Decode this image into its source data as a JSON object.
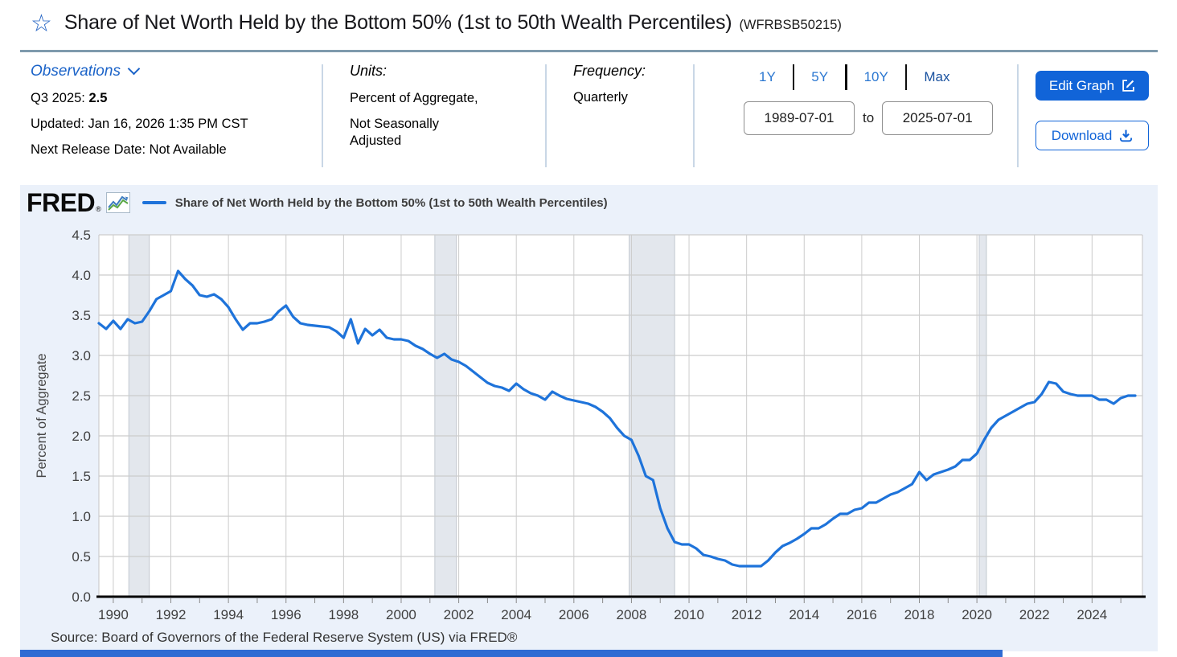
{
  "header": {
    "title": "Share of Net Worth Held by the Bottom 50% (1st to 50th Wealth Percentiles)",
    "series_id": "(WFRBSB50215)"
  },
  "icons": {
    "favorite_star": "☆"
  },
  "toolbar": {
    "observations_label": "Observations",
    "latest_period_label": "Q3 2025:",
    "latest_value": "2.5",
    "updated": "Updated: Jan 16, 2026 1:35 PM CST",
    "next_release": "Next Release Date: Not Available",
    "units_label": "Units:",
    "units_value_line1": "Percent of Aggregate,",
    "units_value_line2": "Not Seasonally Adjusted",
    "frequency_label": "Frequency:",
    "frequency_value": "Quarterly",
    "range_buttons": [
      "1Y",
      "5Y",
      "10Y",
      "Max"
    ],
    "date_from": "1989-07-01",
    "date_to_label": "to",
    "date_to": "2025-07-01",
    "edit_graph_label": "Edit Graph",
    "download_label": "Download"
  },
  "branding": {
    "logo": "FRED",
    "registered": "®"
  },
  "colors": {
    "accent_blue": "#1b63c8",
    "button_blue": "#1164d8",
    "line_blue": "#1e73da",
    "panel_bg": "#ebf1fa",
    "recession_band": "#e3e7ed",
    "gridline": "#cccccc",
    "footer_strip": "#2e6bd3"
  },
  "chart_data": {
    "type": "line",
    "legend_label": "Share of Net Worth Held by the Bottom 50% (1st to 50th Wealth Percentiles)",
    "ylabel": "Percent of Aggregate",
    "source": "Source: Board of Governors of the Federal Reserve System (US) via FRED®",
    "ylim": [
      0,
      4.5
    ],
    "ytick_step": 0.5,
    "xlim": [
      1989.5,
      2025.75
    ],
    "xticks": [
      1990,
      1992,
      1994,
      1996,
      1998,
      2000,
      2002,
      2004,
      2006,
      2008,
      2010,
      2012,
      2014,
      2016,
      2018,
      2020,
      2022,
      2024
    ],
    "frequency": "quarterly",
    "start_period": "1989-07-01",
    "end_period": "2025-07-01",
    "values_start_year": 1989.5,
    "values_step_years": 0.25,
    "line_color": "#1e73da",
    "grid": true,
    "recession_bands": [
      [
        1990.54,
        1991.25
      ],
      [
        2001.17,
        2001.92
      ],
      [
        2007.92,
        2009.5
      ],
      [
        2020.08,
        2020.33
      ]
    ],
    "values": [
      3.4,
      3.33,
      3.43,
      3.33,
      3.45,
      3.4,
      3.42,
      3.55,
      3.7,
      3.75,
      3.8,
      4.05,
      3.95,
      3.87,
      3.75,
      3.73,
      3.76,
      3.7,
      3.6,
      3.45,
      3.32,
      3.4,
      3.4,
      3.42,
      3.45,
      3.55,
      3.62,
      3.48,
      3.4,
      3.38,
      3.37,
      3.36,
      3.35,
      3.3,
      3.22,
      3.45,
      3.15,
      3.33,
      3.25,
      3.32,
      3.22,
      3.2,
      3.2,
      3.18,
      3.12,
      3.08,
      3.02,
      2.97,
      3.02,
      2.95,
      2.92,
      2.87,
      2.8,
      2.73,
      2.66,
      2.62,
      2.6,
      2.56,
      2.65,
      2.58,
      2.53,
      2.5,
      2.45,
      2.55,
      2.5,
      2.46,
      2.44,
      2.42,
      2.4,
      2.36,
      2.3,
      2.22,
      2.1,
      2.0,
      1.95,
      1.75,
      1.5,
      1.45,
      1.1,
      0.85,
      0.68,
      0.65,
      0.65,
      0.6,
      0.52,
      0.5,
      0.47,
      0.45,
      0.4,
      0.38,
      0.38,
      0.38,
      0.38,
      0.45,
      0.55,
      0.63,
      0.67,
      0.72,
      0.78,
      0.85,
      0.85,
      0.9,
      0.97,
      1.03,
      1.03,
      1.08,
      1.1,
      1.17,
      1.17,
      1.22,
      1.27,
      1.3,
      1.35,
      1.4,
      1.55,
      1.45,
      1.52,
      1.55,
      1.58,
      1.62,
      1.7,
      1.7,
      1.78,
      1.95,
      2.1,
      2.2,
      2.25,
      2.3,
      2.35,
      2.4,
      2.42,
      2.52,
      2.67,
      2.65,
      2.55,
      2.52,
      2.5,
      2.5,
      2.5,
      2.45,
      2.45,
      2.4,
      2.47,
      2.5,
      2.5
    ]
  }
}
